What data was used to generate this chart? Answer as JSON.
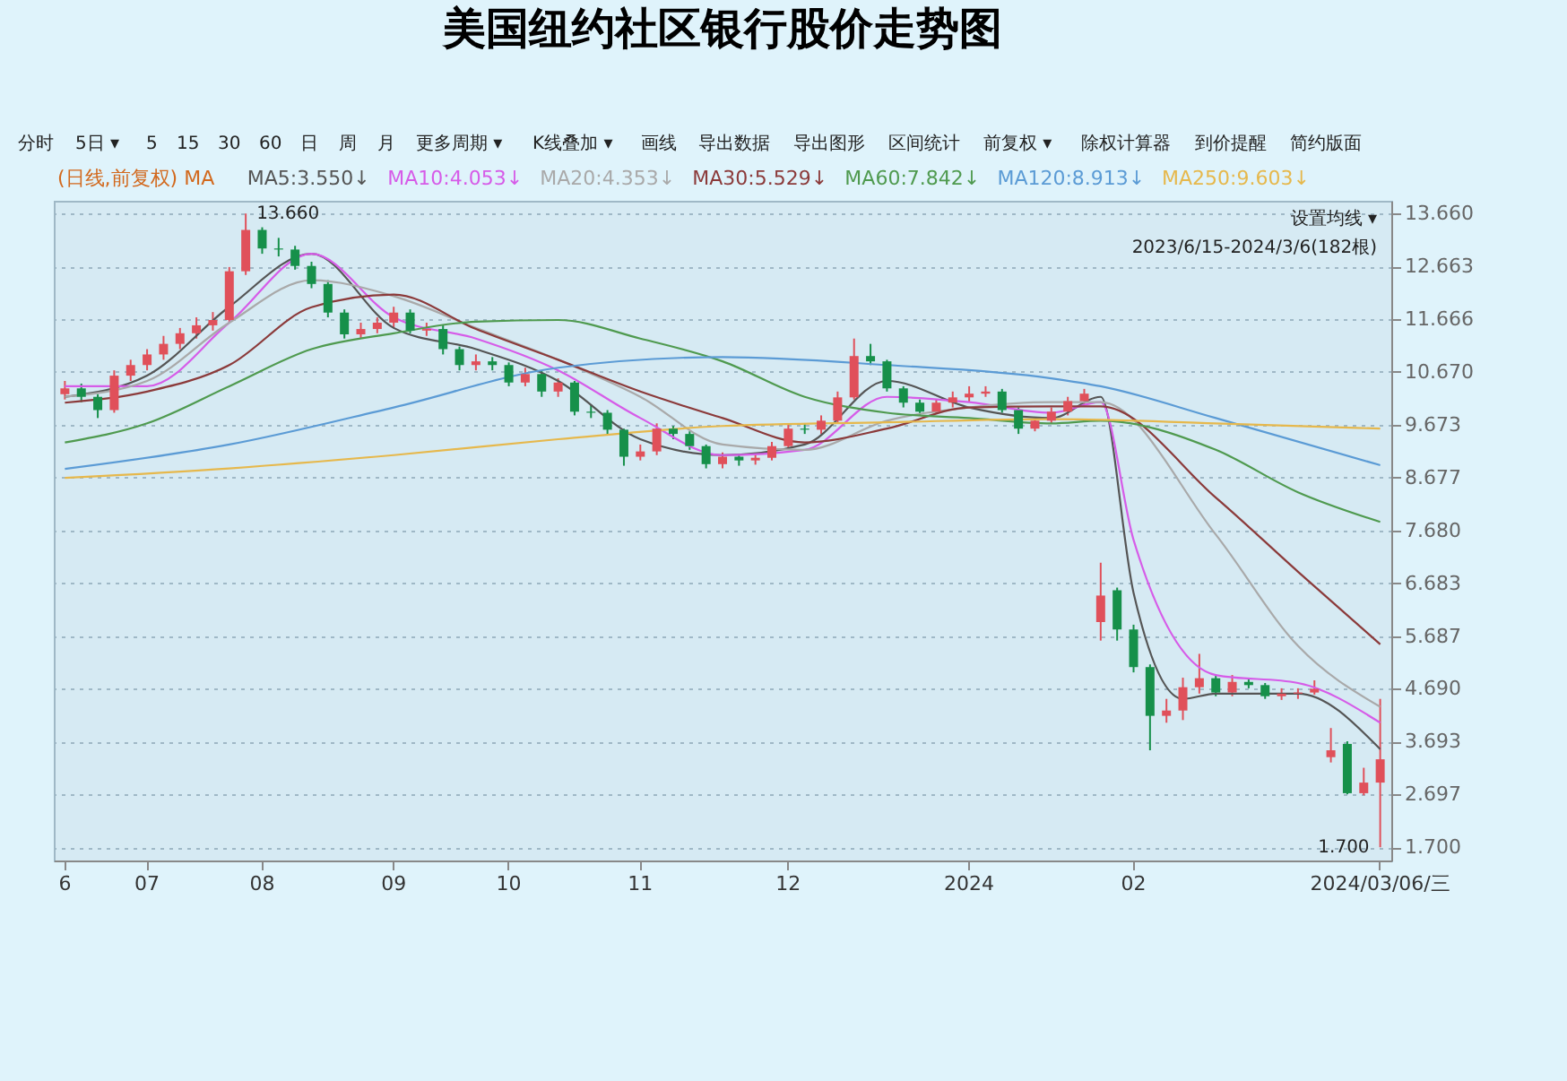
{
  "chart_data": {
    "type": "candlestick",
    "title": "美国纽约社区银行股价走势图",
    "categories": [
      "6",
      null,
      null,
      null,
      null,
      "07",
      null,
      null,
      null,
      null,
      null,
      null,
      "08",
      null,
      null,
      null,
      null,
      null,
      null,
      null,
      "09",
      null,
      null,
      null,
      null,
      null,
      null,
      "10",
      null,
      null,
      null,
      null,
      null,
      null,
      null,
      "11",
      null,
      null,
      null,
      null,
      null,
      null,
      null,
      null,
      "12",
      null,
      null,
      null,
      null,
      null,
      null,
      null,
      null,
      null,
      null,
      "2024",
      null,
      null,
      null,
      null,
      null,
      null,
      null,
      null,
      null,
      "02",
      null,
      null,
      null,
      null,
      null,
      null,
      null,
      null,
      null,
      null,
      null,
      null,
      null,
      null,
      "2024/03/06/三"
    ],
    "ohlc": [
      [
        10.25,
        10.5,
        10.15,
        10.36
      ],
      [
        10.36,
        10.45,
        10.1,
        10.2
      ],
      [
        10.2,
        10.25,
        9.8,
        9.95
      ],
      [
        9.95,
        10.7,
        9.9,
        10.6
      ],
      [
        10.6,
        10.9,
        10.5,
        10.8
      ],
      [
        10.8,
        11.1,
        10.7,
        11.0
      ],
      [
        11.0,
        11.35,
        10.9,
        11.2
      ],
      [
        11.2,
        11.5,
        11.1,
        11.4
      ],
      [
        11.4,
        11.7,
        11.3,
        11.55
      ],
      [
        11.55,
        11.8,
        11.45,
        11.65
      ],
      [
        11.65,
        12.65,
        11.6,
        12.57
      ],
      [
        12.57,
        13.66,
        12.5,
        13.35
      ],
      [
        13.35,
        13.4,
        12.9,
        13.0
      ],
      [
        13.0,
        13.2,
        12.85,
        12.98
      ],
      [
        12.98,
        13.05,
        12.6,
        12.67
      ],
      [
        12.67,
        12.75,
        12.25,
        12.33
      ],
      [
        12.33,
        12.4,
        11.7,
        11.79
      ],
      [
        11.79,
        11.85,
        11.3,
        11.38
      ],
      [
        11.38,
        11.6,
        11.3,
        11.48
      ],
      [
        11.48,
        11.7,
        11.4,
        11.6
      ],
      [
        11.6,
        11.9,
        11.5,
        11.79
      ],
      [
        11.79,
        11.85,
        11.4,
        11.45
      ],
      [
        11.45,
        11.6,
        11.35,
        11.48
      ],
      [
        11.48,
        11.55,
        11.0,
        11.1
      ],
      [
        11.1,
        11.15,
        10.7,
        10.8
      ],
      [
        10.8,
        11.0,
        10.7,
        10.87
      ],
      [
        10.87,
        10.95,
        10.7,
        10.8
      ],
      [
        10.8,
        10.85,
        10.4,
        10.47
      ],
      [
        10.47,
        10.75,
        10.4,
        10.63
      ],
      [
        10.63,
        10.7,
        10.2,
        10.3
      ],
      [
        10.3,
        10.55,
        10.2,
        10.47
      ],
      [
        10.47,
        10.5,
        9.85,
        9.92
      ],
      [
        9.92,
        10.05,
        9.8,
        9.9
      ],
      [
        9.9,
        9.95,
        9.5,
        9.58
      ],
      [
        9.58,
        9.6,
        8.9,
        9.07
      ],
      [
        9.07,
        9.3,
        9.0,
        9.17
      ],
      [
        9.17,
        9.7,
        9.1,
        9.6
      ],
      [
        9.6,
        9.65,
        9.4,
        9.5
      ],
      [
        9.5,
        9.55,
        9.2,
        9.27
      ],
      [
        9.27,
        9.3,
        8.85,
        8.93
      ],
      [
        8.93,
        9.15,
        8.85,
        9.07
      ],
      [
        9.07,
        9.1,
        8.9,
        9.0
      ],
      [
        9.0,
        9.12,
        8.92,
        9.05
      ],
      [
        9.05,
        9.35,
        9.0,
        9.27
      ],
      [
        9.27,
        9.7,
        9.2,
        9.6
      ],
      [
        9.6,
        9.7,
        9.5,
        9.58
      ],
      [
        9.58,
        9.85,
        9.5,
        9.75
      ],
      [
        9.75,
        10.3,
        9.7,
        10.19
      ],
      [
        10.19,
        11.3,
        10.15,
        10.97
      ],
      [
        10.97,
        11.2,
        10.8,
        10.87
      ],
      [
        10.87,
        10.9,
        10.3,
        10.36
      ],
      [
        10.36,
        10.4,
        10.0,
        10.09
      ],
      [
        10.09,
        10.15,
        9.85,
        9.92
      ],
      [
        9.92,
        10.15,
        9.88,
        10.09
      ],
      [
        10.09,
        10.3,
        10.0,
        10.19
      ],
      [
        10.19,
        10.4,
        10.1,
        10.26
      ],
      [
        10.26,
        10.4,
        10.2,
        10.3
      ],
      [
        10.3,
        10.35,
        9.9,
        9.95
      ],
      [
        9.95,
        10.0,
        9.5,
        9.6
      ],
      [
        9.6,
        9.8,
        9.55,
        9.75
      ],
      [
        9.75,
        10.0,
        9.7,
        9.92
      ],
      [
        9.92,
        10.2,
        9.85,
        10.12
      ],
      [
        10.12,
        10.35,
        10.05,
        10.26
      ],
      [
        5.95,
        7.07,
        5.6,
        6.45
      ],
      [
        6.55,
        6.6,
        5.6,
        5.81
      ],
      [
        5.81,
        5.9,
        5.0,
        5.1
      ],
      [
        5.1,
        5.15,
        3.53,
        4.18
      ],
      [
        4.18,
        4.5,
        4.05,
        4.28
      ],
      [
        4.28,
        4.9,
        4.1,
        4.72
      ],
      [
        4.72,
        5.35,
        4.6,
        4.89
      ],
      [
        4.89,
        4.95,
        4.55,
        4.62
      ],
      [
        4.62,
        4.95,
        4.55,
        4.82
      ],
      [
        4.82,
        4.9,
        4.7,
        4.76
      ],
      [
        4.76,
        4.8,
        4.5,
        4.55
      ],
      [
        4.55,
        4.7,
        4.48,
        4.6
      ],
      [
        4.6,
        4.7,
        4.5,
        4.62
      ],
      [
        4.62,
        4.85,
        4.58,
        4.69
      ],
      [
        3.4,
        3.95,
        3.3,
        3.53
      ],
      [
        3.65,
        3.7,
        2.7,
        2.72
      ],
      [
        2.72,
        3.2,
        2.68,
        2.92
      ],
      [
        2.92,
        4.5,
        1.7,
        3.36
      ]
    ],
    "colors": [
      "#e0505a",
      "#16904a",
      "#16904a",
      "#e0505a",
      "#e0505a",
      "#e0505a",
      "#e0505a",
      "#e0505a",
      "#e0505a",
      "#e0505a",
      "#e0505a",
      "#e0505a",
      "#16904a",
      "#16904a",
      "#16904a",
      "#16904a",
      "#16904a",
      "#16904a",
      "#e0505a",
      "#e0505a",
      "#e0505a",
      "#16904a",
      "#e0505a",
      "#16904a",
      "#16904a",
      "#e0505a",
      "#16904a",
      "#16904a",
      "#e0505a",
      "#16904a",
      "#e0505a",
      "#16904a",
      "#16904a",
      "#16904a",
      "#16904a",
      "#e0505a",
      "#e0505a",
      "#16904a",
      "#16904a",
      "#16904a",
      "#e0505a",
      "#16904a",
      "#e0505a",
      "#e0505a",
      "#e0505a",
      "#16904a",
      "#e0505a",
      "#e0505a",
      "#e0505a",
      "#16904a",
      "#16904a",
      "#16904a",
      "#16904a",
      "#e0505a",
      "#e0505a",
      "#e0505a",
      "#e0505a",
      "#16904a",
      "#16904a",
      "#e0505a",
      "#e0505a",
      "#e0505a",
      "#e0505a",
      "#e0505a",
      "#16904a",
      "#16904a",
      "#16904a",
      "#e0505a",
      "#e0505a",
      "#e0505a",
      "#16904a",
      "#e0505a",
      "#16904a",
      "#16904a",
      "#e0505a",
      "#e0505a",
      "#e0505a",
      "#e0505a",
      "#16904a",
      "#e0505a",
      "#e0505a"
    ],
    "series": [
      {
        "name": "MA5:3.550↓",
        "type": "line",
        "color": "#555555",
        "values": [
          10.2,
          null,
          null,
          null,
          null,
          10.6,
          null,
          null,
          null,
          null,
          11.9,
          null,
          null,
          null,
          null,
          12.9,
          null,
          null,
          null,
          null,
          11.5,
          null,
          null,
          null,
          null,
          11.1,
          null,
          null,
          null,
          null,
          10.5,
          null,
          null,
          null,
          null,
          9.4,
          null,
          null,
          null,
          null,
          9.1,
          null,
          null,
          null,
          null,
          9.3,
          null,
          null,
          null,
          null,
          10.5,
          null,
          null,
          null,
          null,
          10.0,
          null,
          null,
          null,
          null,
          9.8,
          null,
          null,
          10.2,
          null,
          6.5,
          null,
          null,
          4.5,
          null,
          4.6,
          null,
          null,
          null,
          null,
          4.6,
          null,
          null,
          null,
          null,
          3.55
        ]
      },
      {
        "name": "MA10:4.053↓",
        "type": "line",
        "color": "#d65ce8",
        "values": [
          10.4,
          null,
          null,
          null,
          null,
          10.4,
          null,
          null,
          null,
          null,
          11.6,
          null,
          null,
          null,
          null,
          12.9,
          null,
          null,
          null,
          null,
          11.7,
          null,
          null,
          null,
          null,
          11.3,
          null,
          null,
          null,
          null,
          10.7,
          null,
          null,
          null,
          null,
          9.8,
          null,
          null,
          null,
          null,
          9.1,
          null,
          null,
          null,
          null,
          9.2,
          null,
          null,
          null,
          null,
          10.2,
          null,
          null,
          null,
          null,
          10.1,
          null,
          null,
          null,
          null,
          9.9,
          null,
          null,
          10.1,
          null,
          7.5,
          null,
          null,
          null,
          null,
          4.95,
          null,
          null,
          null,
          null,
          4.8,
          null,
          null,
          null,
          null,
          4.05
        ]
      },
      {
        "name": "MA20:4.353↓",
        "type": "line",
        "color": "#a9a9a9",
        "values": [
          10.2,
          null,
          null,
          null,
          null,
          10.5,
          null,
          null,
          null,
          null,
          11.6,
          null,
          null,
          null,
          null,
          12.4,
          null,
          null,
          null,
          null,
          12.1,
          null,
          null,
          null,
          null,
          11.5,
          null,
          null,
          null,
          null,
          10.9,
          null,
          null,
          null,
          null,
          10.2,
          null,
          null,
          null,
          null,
          9.3,
          null,
          null,
          null,
          null,
          9.2,
          null,
          null,
          null,
          null,
          9.75,
          null,
          null,
          null,
          null,
          10.0,
          null,
          null,
          null,
          null,
          10.1,
          null,
          null,
          10.1,
          null,
          null,
          null,
          null,
          null,
          null,
          7.6,
          null,
          null,
          null,
          null,
          5.5,
          null,
          null,
          null,
          null,
          4.35
        ]
      },
      {
        "name": "MA30:5.529↓",
        "type": "line",
        "color": "#8b3a3a",
        "values": [
          10.09,
          null,
          null,
          null,
          null,
          10.3,
          null,
          null,
          null,
          null,
          10.8,
          null,
          null,
          null,
          null,
          11.89,
          null,
          null,
          null,
          null,
          12.13,
          null,
          null,
          null,
          null,
          11.48,
          null,
          null,
          null,
          null,
          10.9,
          null,
          null,
          null,
          null,
          10.3,
          null,
          null,
          null,
          null,
          9.8,
          null,
          null,
          null,
          null,
          9.34,
          null,
          null,
          null,
          null,
          9.6,
          null,
          null,
          null,
          null,
          10.0,
          null,
          null,
          null,
          null,
          10.02,
          null,
          null,
          10.02,
          null,
          null,
          null,
          null,
          null,
          null,
          8.3,
          null,
          null,
          null,
          null,
          6.9,
          null,
          null,
          null,
          null,
          5.53
        ]
      },
      {
        "name": "MA60:7.842↓",
        "type": "line",
        "color": "#4f9a4f",
        "values": [
          9.34,
          null,
          null,
          null,
          null,
          9.7,
          null,
          null,
          null,
          null,
          10.4,
          null,
          null,
          null,
          null,
          11.1,
          null,
          null,
          null,
          null,
          11.4,
          null,
          null,
          null,
          null,
          11.62,
          null,
          null,
          null,
          null,
          11.65,
          null,
          null,
          null,
          null,
          11.3,
          null,
          null,
          null,
          null,
          10.87,
          null,
          null,
          null,
          null,
          10.2,
          null,
          null,
          null,
          null,
          9.9,
          null,
          null,
          null,
          null,
          9.8,
          null,
          null,
          null,
          null,
          9.7,
          null,
          null,
          9.75,
          null,
          null,
          null,
          null,
          null,
          null,
          9.2,
          null,
          null,
          null,
          null,
          8.4,
          null,
          null,
          null,
          null,
          7.84
        ]
      },
      {
        "name": "MA120:8.913↓",
        "type": "line",
        "color": "#5b9bd5",
        "values": [
          8.84,
          null,
          null,
          null,
          null,
          null,
          null,
          null,
          null,
          null,
          9.3,
          null,
          null,
          null,
          null,
          null,
          null,
          null,
          null,
          null,
          10.0,
          null,
          null,
          null,
          null,
          null,
          null,
          null,
          null,
          null,
          10.75,
          null,
          null,
          null,
          null,
          null,
          null,
          null,
          null,
          null,
          10.95,
          null,
          null,
          null,
          null,
          null,
          null,
          null,
          null,
          null,
          10.8,
          null,
          null,
          null,
          null,
          null,
          null,
          null,
          null,
          null,
          10.55,
          null,
          null,
          10.4,
          null,
          null,
          null,
          null,
          null,
          null,
          9.8,
          null,
          null,
          null,
          null,
          null,
          null,
          null,
          null,
          null,
          8.91
        ]
      },
      {
        "name": "MA250:9.603↓",
        "type": "line",
        "color": "#e6b84c",
        "values": [
          8.67,
          null,
          null,
          null,
          null,
          null,
          null,
          null,
          null,
          null,
          8.85,
          null,
          null,
          null,
          null,
          null,
          null,
          null,
          null,
          null,
          9.1,
          null,
          null,
          null,
          null,
          null,
          null,
          null,
          null,
          null,
          9.4,
          null,
          null,
          null,
          null,
          null,
          null,
          null,
          null,
          null,
          9.65,
          null,
          null,
          null,
          null,
          null,
          null,
          null,
          null,
          null,
          9.72,
          null,
          null,
          null,
          null,
          null,
          null,
          null,
          null,
          null,
          9.78,
          null,
          null,
          null,
          null,
          null,
          null,
          null,
          null,
          null,
          9.7,
          null,
          null,
          null,
          null,
          null,
          null,
          null,
          null,
          null,
          9.6
        ]
      }
    ],
    "legend_title": "(日线,前复权) MA",
    "legend": "top left",
    "ylim": [
      1.45,
      13.9
    ],
    "yticks": [
      {
        "value": 13.66,
        "label": "13.660"
      },
      {
        "value": 12.663,
        "label": "12.663"
      },
      {
        "value": 11.666,
        "label": "11.666"
      },
      {
        "value": 10.67,
        "label": "10.670"
      },
      {
        "value": 9.673,
        "label": "9.673"
      },
      {
        "value": 8.677,
        "label": "8.677"
      },
      {
        "value": 7.68,
        "label": "7.680"
      },
      {
        "value": 6.683,
        "label": "6.683"
      },
      {
        "value": 5.687,
        "label": "5.687"
      },
      {
        "value": 4.69,
        "label": "4.690"
      },
      {
        "value": 3.693,
        "label": "3.693"
      },
      {
        "value": 2.697,
        "label": "2.697"
      },
      {
        "value": 1.7,
        "label": "1.700"
      }
    ],
    "grid": "y",
    "annotations": [
      "分时",
      "5日 ▾",
      "5",
      "15",
      "30",
      "60",
      "日",
      "周",
      "月",
      "更多周期 ▾",
      "K线叠加 ▾",
      "画线",
      "导出数据",
      "导出图形",
      "区间统计",
      "前复权 ▾",
      "除权计算器",
      "到价提醒",
      "简约版面",
      "设置均线 ▾",
      "2023/6/15-2024/3/6(182根)",
      "13.660",
      "1.700"
    ]
  }
}
